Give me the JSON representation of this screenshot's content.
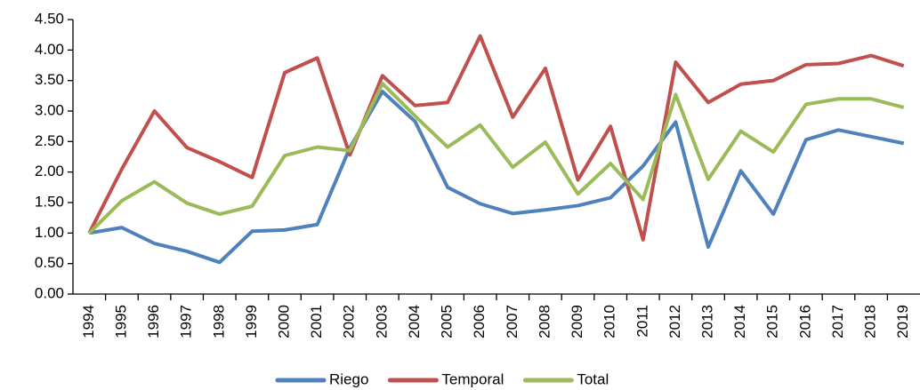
{
  "chart_data": {
    "type": "line",
    "categories": [
      "1994",
      "1995",
      "1996",
      "1997",
      "1998",
      "1999",
      "2000",
      "2001",
      "2002",
      "2003",
      "2004",
      "2005",
      "2006",
      "2007",
      "2008",
      "2009",
      "2010",
      "2011",
      "2012",
      "2013",
      "2014",
      "2015",
      "2016",
      "2017",
      "2018",
      "2019"
    ],
    "series": [
      {
        "name": "Riego",
        "color": "#4f81bd",
        "values": [
          1.0,
          1.09,
          0.83,
          0.7,
          0.52,
          1.03,
          1.05,
          1.14,
          2.4,
          3.32,
          2.83,
          1.75,
          1.48,
          1.32,
          1.38,
          1.45,
          1.58,
          2.1,
          2.82,
          0.77,
          2.02,
          1.31,
          2.53,
          2.69,
          2.58,
          2.47
        ]
      },
      {
        "name": "Temporal",
        "color": "#c0504d",
        "values": [
          1.0,
          2.05,
          3.0,
          2.4,
          2.17,
          1.91,
          3.63,
          3.87,
          2.28,
          3.58,
          3.09,
          3.14,
          4.23,
          2.9,
          3.7,
          1.87,
          2.75,
          0.89,
          3.8,
          3.14,
          3.44,
          3.5,
          3.76,
          3.78,
          3.91,
          3.74
        ]
      },
      {
        "name": "Total",
        "color": "#9bbb59",
        "values": [
          1.0,
          1.53,
          1.84,
          1.49,
          1.31,
          1.44,
          2.27,
          2.41,
          2.35,
          3.45,
          2.92,
          2.41,
          2.77,
          2.08,
          2.49,
          1.64,
          2.14,
          1.55,
          3.27,
          1.88,
          2.67,
          2.33,
          3.11,
          3.2,
          3.2,
          3.06
        ]
      }
    ],
    "ylim": [
      0,
      4.5
    ],
    "yticks": [
      {
        "value": 0,
        "label": "0.00"
      },
      {
        "value": 0.5,
        "label": "0.50"
      },
      {
        "value": 1,
        "label": "1.00"
      },
      {
        "value": 1.5,
        "label": "1.50"
      },
      {
        "value": 2,
        "label": "2.00"
      },
      {
        "value": 2.5,
        "label": "2.50"
      },
      {
        "value": 3,
        "label": "3.00"
      },
      {
        "value": 3.5,
        "label": "3.50"
      },
      {
        "value": 4,
        "label": "4.00"
      },
      {
        "value": 4.5,
        "label": "4.50"
      }
    ],
    "grid": false,
    "legend": "bottom"
  }
}
